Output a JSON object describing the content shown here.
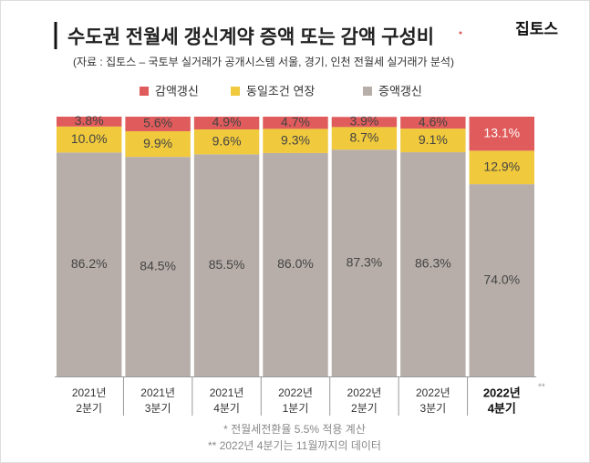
{
  "brand": "집토스",
  "chart_data": {
    "type": "stacked_bar",
    "title": "수도권 전월세 갱신계약 증액 또는 감액 구성비",
    "subtitle": "(자료 : 집토스 – 국토부 실거래가 공개시스템 서울, 경기, 인천 전월세 실거래가 분석)",
    "categories": [
      [
        "2021년",
        "2분기"
      ],
      [
        "2021년",
        "3분기"
      ],
      [
        "2021년",
        "4분기"
      ],
      [
        "2022년",
        "1분기"
      ],
      [
        "2022년",
        "2분기"
      ],
      [
        "2022년",
        "3분기"
      ],
      [
        "2022년",
        "4분기"
      ]
    ],
    "series": [
      {
        "name": "감액갱신",
        "color": "#e05b5b",
        "values": [
          3.8,
          5.6,
          4.9,
          4.7,
          3.9,
          4.6,
          13.1
        ],
        "value_labels": [
          "3.8%",
          "5.6%",
          "4.9%",
          "4.7%",
          "3.9%",
          "4.6%",
          "13.1%"
        ]
      },
      {
        "name": "동일조건 연장",
        "color": "#f0c93c",
        "values": [
          10.0,
          9.9,
          9.6,
          9.3,
          8.7,
          9.1,
          12.9
        ],
        "value_labels": [
          "10.0%",
          "9.9%",
          "9.6%",
          "9.3%",
          "8.7%",
          "9.1%",
          "12.9%"
        ]
      },
      {
        "name": "증액갱신",
        "color": "#b7aea9",
        "values": [
          86.2,
          84.5,
          85.5,
          86.0,
          87.3,
          86.3,
          74.0
        ],
        "value_labels": [
          "86.2%",
          "84.5%",
          "85.5%",
          "86.0%",
          "87.3%",
          "86.3%",
          "74.0%"
        ]
      }
    ],
    "ylim": [
      0,
      100
    ],
    "category_note_marker": "**",
    "notes": [
      "* 전월세전환율 5.5% 적용 계산",
      "** 2022년 4분기는 11월까지의 데이터"
    ]
  }
}
